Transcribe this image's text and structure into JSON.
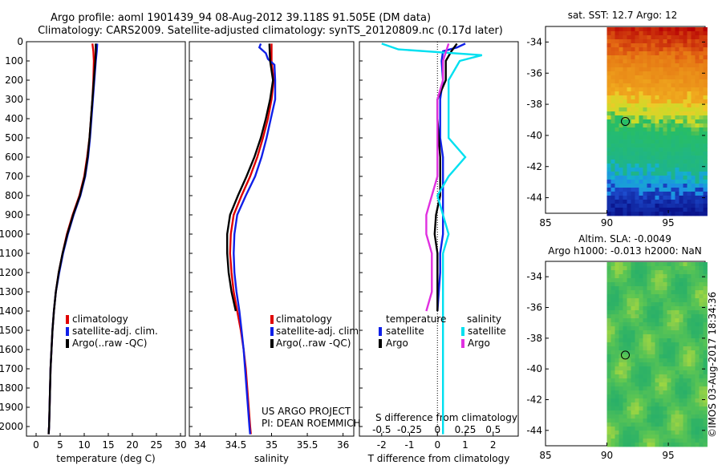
{
  "header": {
    "title_line1": "Argo profile: aoml 1901439_94 08-Aug-2012 39.118S 91.505E (DM data)",
    "title_line2": "Climatology: CARS2009. Satellite-adjusted climatology: synTS_20120809.nc (0.17d later)"
  },
  "footer": {
    "project": "US ARGO PROJECT",
    "pi": "PI: DEAN ROEMMICH",
    "credit": "©IMOS 03-Aug-2017 18:34:36"
  },
  "colors": {
    "climatology": "#e00000",
    "satellite": "#1020e8",
    "argo": "#000000",
    "sal_satellite": "#00e0f0",
    "sal_argo": "#e030e0"
  },
  "chart_data": [
    {
      "type": "line",
      "id": "temperature",
      "xlabel": "temperature (deg C)",
      "ylabel": "",
      "xlim": [
        -2,
        31
      ],
      "ylim": [
        2050,
        0
      ],
      "yticks": [
        0,
        100,
        200,
        300,
        400,
        500,
        600,
        700,
        800,
        900,
        1000,
        1100,
        1200,
        1300,
        1400,
        1500,
        1600,
        1700,
        1800,
        1900,
        2000
      ],
      "xticks": [
        0,
        5,
        10,
        15,
        20,
        25,
        30
      ],
      "legend": [
        "climatology",
        "satellite-adj. clim.",
        "Argo(..raw -QC)"
      ],
      "series": [
        {
          "name": "climatology",
          "color": "red",
          "points": [
            [
              11.7,
              10
            ],
            [
              11.9,
              50
            ],
            [
              12.0,
              100
            ],
            [
              11.9,
              200
            ],
            [
              11.7,
              300
            ],
            [
              11.4,
              400
            ],
            [
              11.1,
              500
            ],
            [
              10.6,
              600
            ],
            [
              10.0,
              700
            ],
            [
              9.0,
              800
            ],
            [
              7.6,
              900
            ],
            [
              6.4,
              1000
            ],
            [
              5.5,
              1100
            ],
            [
              4.7,
              1200
            ],
            [
              4.1,
              1300
            ],
            [
              3.7,
              1400
            ],
            [
              3.4,
              1500
            ],
            [
              3.2,
              1600
            ],
            [
              3.0,
              1700
            ],
            [
              2.9,
              1800
            ],
            [
              2.8,
              1900
            ],
            [
              2.7,
              2000
            ],
            [
              2.6,
              2040
            ]
          ]
        },
        {
          "name": "satellite-adj. clim.",
          "color": "blue",
          "points": [
            [
              12.7,
              10
            ],
            [
              12.6,
              50
            ],
            [
              12.4,
              100
            ],
            [
              12.1,
              200
            ],
            [
              11.8,
              300
            ],
            [
              11.5,
              400
            ],
            [
              11.2,
              500
            ],
            [
              10.8,
              600
            ],
            [
              10.2,
              700
            ],
            [
              9.2,
              800
            ],
            [
              7.8,
              900
            ],
            [
              6.6,
              1000
            ],
            [
              5.6,
              1100
            ],
            [
              4.8,
              1200
            ],
            [
              4.1,
              1300
            ],
            [
              3.7,
              1400
            ],
            [
              3.4,
              1500
            ],
            [
              3.2,
              1600
            ],
            [
              3.0,
              1700
            ],
            [
              2.9,
              1800
            ],
            [
              2.8,
              1900
            ],
            [
              2.7,
              2000
            ],
            [
              2.6,
              2040
            ]
          ]
        },
        {
          "name": "Argo(..raw -QC)",
          "color": "black",
          "points": [
            [
              12.4,
              10
            ],
            [
              12.4,
              50
            ],
            [
              12.3,
              100
            ],
            [
              12.0,
              200
            ],
            [
              11.7,
              300
            ],
            [
              11.4,
              400
            ],
            [
              11.1,
              500
            ],
            [
              10.7,
              600
            ],
            [
              10.1,
              700
            ],
            [
              9.1,
              800
            ],
            [
              7.7,
              900
            ],
            [
              6.5,
              1000
            ],
            [
              5.5,
              1100
            ],
            [
              4.7,
              1200
            ],
            [
              4.1,
              1300
            ],
            [
              3.7,
              1400
            ],
            [
              3.4,
              1500
            ],
            [
              3.2,
              1600
            ],
            [
              3.0,
              1700
            ],
            [
              2.9,
              1800
            ],
            [
              2.8,
              1900
            ],
            [
              2.7,
              2000
            ],
            [
              2.6,
              2040
            ]
          ]
        }
      ]
    },
    {
      "type": "line",
      "id": "salinity",
      "xlabel": "salinity",
      "xlim": [
        33.85,
        36.15
      ],
      "ylim": [
        2050,
        0
      ],
      "xticks": [
        34,
        34.5,
        35,
        35.5,
        36
      ],
      "legend": [
        "climatology",
        "satellite-adj. clim.",
        "Argo(..raw -QC)"
      ],
      "series": [
        {
          "name": "climatology",
          "color": "red",
          "points": [
            [
              35.0,
              10
            ],
            [
              35.0,
              100
            ],
            [
              35.03,
              200
            ],
            [
              35.0,
              300
            ],
            [
              34.95,
              400
            ],
            [
              34.88,
              500
            ],
            [
              34.8,
              600
            ],
            [
              34.7,
              700
            ],
            [
              34.58,
              800
            ],
            [
              34.47,
              900
            ],
            [
              34.43,
              1000
            ],
            [
              34.42,
              1100
            ],
            [
              34.44,
              1200
            ],
            [
              34.47,
              1300
            ],
            [
              34.52,
              1400
            ],
            [
              34.57,
              1500
            ],
            [
              34.61,
              1600
            ],
            [
              34.64,
              1700
            ],
            [
              34.66,
              1800
            ],
            [
              34.68,
              1900
            ],
            [
              34.7,
              2000
            ],
            [
              34.71,
              2040
            ]
          ]
        },
        {
          "name": "satellite-adj. clim.",
          "color": "blue",
          "points": [
            [
              34.85,
              10
            ],
            [
              34.83,
              30
            ],
            [
              34.92,
              60
            ],
            [
              34.95,
              90
            ],
            [
              35.04,
              120
            ],
            [
              35.05,
              200
            ],
            [
              35.05,
              300
            ],
            [
              34.99,
              400
            ],
            [
              34.93,
              500
            ],
            [
              34.86,
              600
            ],
            [
              34.77,
              700
            ],
            [
              34.64,
              800
            ],
            [
              34.52,
              900
            ],
            [
              34.48,
              1000
            ],
            [
              34.47,
              1100
            ],
            [
              34.48,
              1200
            ],
            [
              34.51,
              1300
            ],
            [
              34.55,
              1400
            ],
            [
              34.58,
              1500
            ],
            [
              34.61,
              1600
            ],
            [
              34.63,
              1700
            ],
            [
              34.65,
              1800
            ],
            [
              34.67,
              1900
            ],
            [
              34.69,
              2000
            ],
            [
              34.7,
              2040
            ]
          ]
        },
        {
          "name": "Argo(..raw -QC)",
          "color": "black",
          "points": [
            [
              34.97,
              10
            ],
            [
              34.98,
              100
            ],
            [
              35.02,
              200
            ],
            [
              34.98,
              300
            ],
            [
              34.92,
              400
            ],
            [
              34.85,
              500
            ],
            [
              34.76,
              600
            ],
            [
              34.65,
              700
            ],
            [
              34.53,
              800
            ],
            [
              34.42,
              900
            ],
            [
              34.38,
              1000
            ],
            [
              34.38,
              1100
            ],
            [
              34.4,
              1200
            ],
            [
              34.44,
              1300
            ],
            [
              34.5,
              1400
            ]
          ]
        }
      ]
    },
    {
      "type": "line",
      "id": "difference",
      "xlabel": "T difference from climatology",
      "x2label": "S difference from climatology",
      "xlim": [
        -2.8,
        2.9
      ],
      "ylim": [
        2050,
        0
      ],
      "xticks": [
        -2,
        -1,
        0,
        1,
        2
      ],
      "x2ticks": [
        "-0.5",
        "-0.25",
        "0",
        "0.25",
        "0.5"
      ],
      "legend_groups": [
        {
          "title": "temperature",
          "items": [
            "satellite",
            "Argo"
          ]
        },
        {
          "title": "salinity",
          "items": [
            "satellite",
            "Argo"
          ]
        }
      ],
      "series": [
        {
          "name": "temperature satellite",
          "color": "blue",
          "points": [
            [
              1.0,
              10
            ],
            [
              0.7,
              30
            ],
            [
              0.2,
              50
            ],
            [
              0.15,
              100
            ],
            [
              0.2,
              200
            ],
            [
              0.1,
              300
            ],
            [
              0.1,
              400
            ],
            [
              0.1,
              500
            ],
            [
              0.2,
              600
            ],
            [
              0.2,
              700
            ],
            [
              0.2,
              800
            ],
            [
              0.2,
              900
            ],
            [
              0.2,
              1000
            ],
            [
              0.1,
              1100
            ],
            [
              0.1,
              1200
            ],
            [
              0.05,
              1300
            ],
            [
              0.0,
              1400
            ]
          ]
        },
        {
          "name": "temperature Argo",
          "color": "black",
          "points": [
            [
              0.7,
              10
            ],
            [
              0.5,
              50
            ],
            [
              0.3,
              100
            ],
            [
              0.3,
              200
            ],
            [
              0.0,
              300
            ],
            [
              0.0,
              400
            ],
            [
              0.05,
              500
            ],
            [
              0.1,
              600
            ],
            [
              0.1,
              700
            ],
            [
              0.1,
              800
            ],
            [
              -0.05,
              900
            ],
            [
              -0.1,
              1000
            ],
            [
              0.0,
              1100
            ],
            [
              0.0,
              1200
            ],
            [
              0.0,
              1300
            ],
            [
              0.0,
              1400
            ]
          ]
        },
        {
          "name": "salinity satellite",
          "color": "cyan",
          "points": [
            [
              -0.5,
              10
            ],
            [
              -0.35,
              40
            ],
            [
              0.4,
              70
            ],
            [
              0.2,
              100
            ],
            [
              0.1,
              200
            ],
            [
              0.1,
              300
            ],
            [
              0.1,
              400
            ],
            [
              0.1,
              500
            ],
            [
              0.25,
              600
            ],
            [
              0.1,
              700
            ],
            [
              0.0,
              800
            ],
            [
              0.05,
              900
            ],
            [
              0.1,
              1000
            ],
            [
              0.05,
              1100
            ],
            [
              0.05,
              1200
            ],
            [
              0.05,
              1300
            ],
            [
              0.05,
              1400
            ],
            [
              0.05,
              1500
            ],
            [
              0.05,
              1700
            ],
            [
              0.05,
              1900
            ],
            [
              0.05,
              2040
            ]
          ]
        },
        {
          "name": "salinity Argo",
          "color": "magenta",
          "points": [
            [
              0.1,
              10
            ],
            [
              0.05,
              100
            ],
            [
              0.05,
              200
            ],
            [
              0.0,
              300
            ],
            [
              0.0,
              400
            ],
            [
              0.0,
              500
            ],
            [
              0.0,
              600
            ],
            [
              0.0,
              700
            ],
            [
              -0.05,
              800
            ],
            [
              -0.1,
              900
            ],
            [
              -0.1,
              1000
            ],
            [
              -0.05,
              1100
            ],
            [
              -0.05,
              1200
            ],
            [
              -0.05,
              1300
            ],
            [
              -0.1,
              1400
            ]
          ]
        }
      ]
    },
    {
      "type": "heatmap",
      "id": "sst_map",
      "title": "sat. SST: 12.7 Argo: 12",
      "xlim": [
        85,
        98
      ],
      "ylim": [
        -45,
        -33
      ],
      "xticks": [
        85,
        90,
        95
      ],
      "yticks": [
        -34,
        -36,
        -38,
        -40,
        -42,
        -44
      ],
      "marker": [
        91.5,
        -39.1
      ]
    },
    {
      "type": "heatmap",
      "id": "sla_map",
      "title_line1": "Altim. SLA: -0.0049",
      "title_line2": "Argo h1000: -0.013 h2000: NaN",
      "xlim": [
        85,
        98
      ],
      "ylim": [
        -45,
        -33
      ],
      "xticks": [
        85,
        90,
        95
      ],
      "yticks": [
        -34,
        -36,
        -38,
        -40,
        -42,
        -44
      ],
      "marker": [
        91.5,
        -39.1
      ]
    }
  ]
}
